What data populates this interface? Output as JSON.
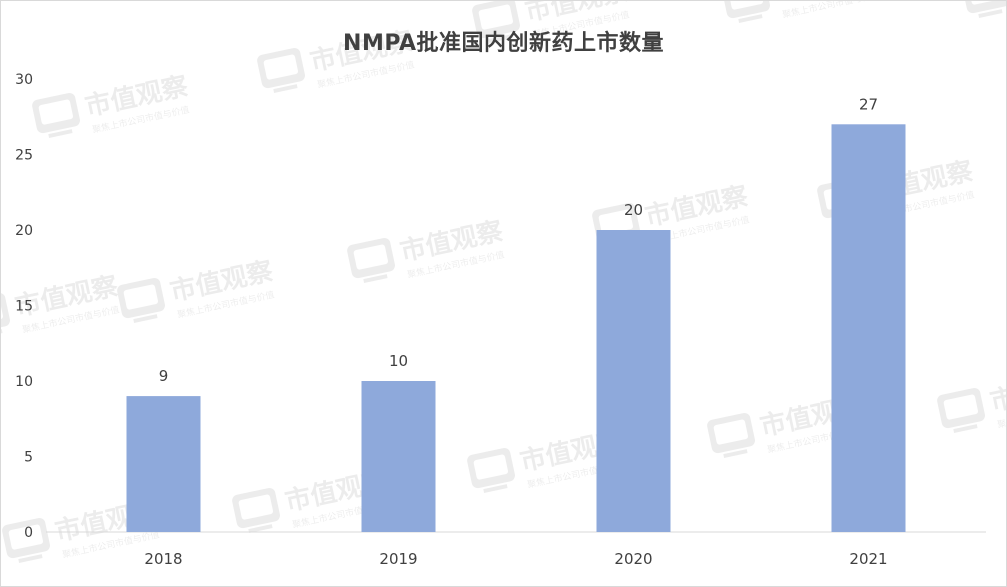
{
  "chart_data": {
    "type": "bar",
    "title": "NMPA批准国内创新药上市数量",
    "categories": [
      "2018",
      "2019",
      "2020",
      "2021"
    ],
    "values": [
      9,
      10,
      20,
      27
    ],
    "ylim": [
      0,
      30
    ],
    "yticks": [
      0,
      5,
      10,
      15,
      20,
      25,
      30
    ],
    "xlabel": "",
    "ylabel": "",
    "grid": false,
    "legend": "none",
    "bar_color": "#8EA9DB",
    "data_labels": true
  },
  "watermark": {
    "logo_text": "市值观察",
    "sub_text": "聚焦上市公司市值与价值",
    "icon": "tv-logo-icon"
  },
  "colors": {
    "text": "#404040",
    "axis": "#d9d9d9"
  }
}
